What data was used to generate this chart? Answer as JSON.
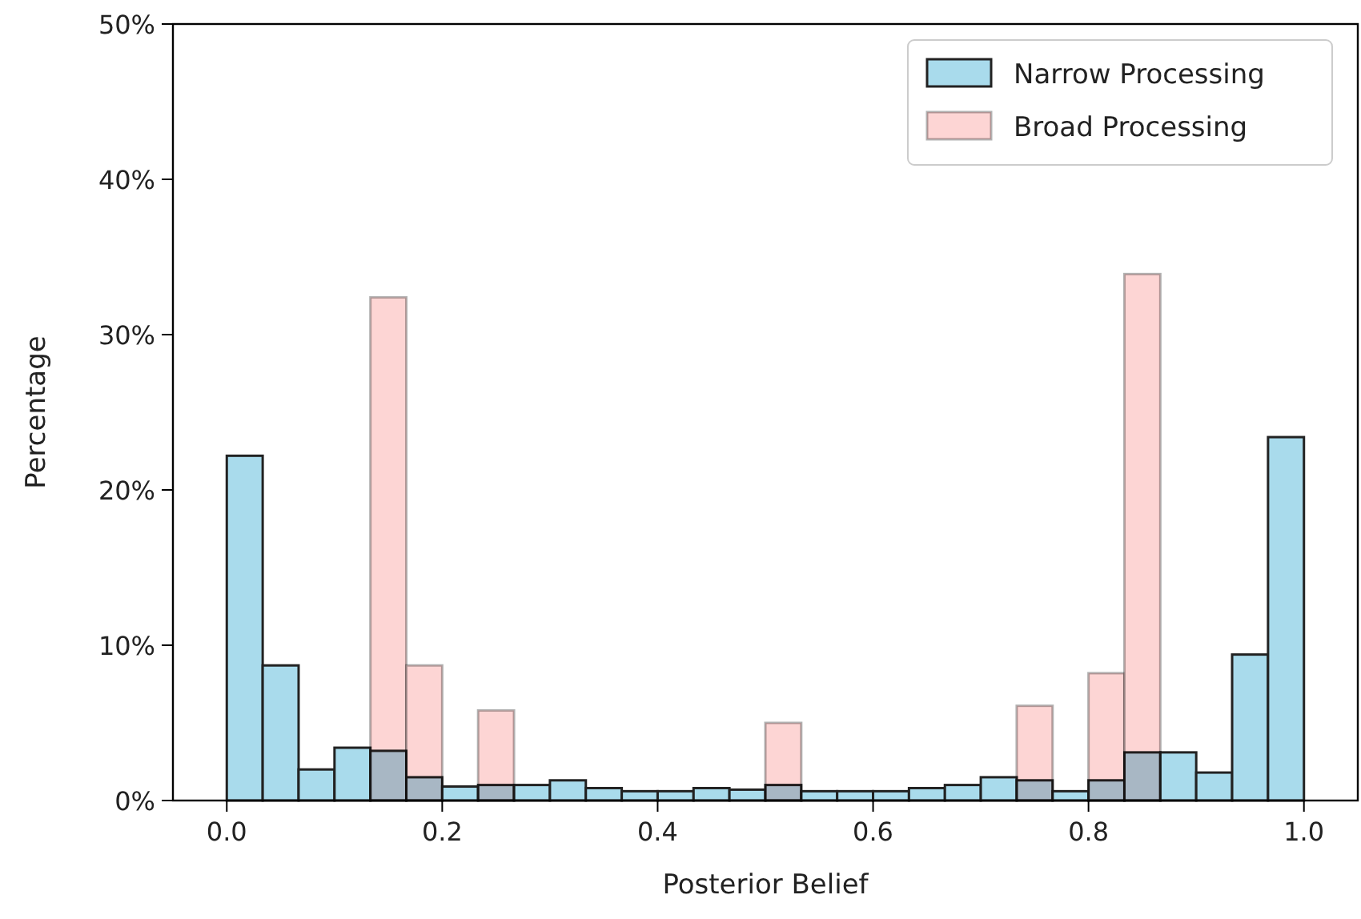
{
  "chart_data": {
    "type": "histogram",
    "xlabel": "Posterior Belief",
    "ylabel": "Percentage",
    "bins": [
      0,
      0.03333,
      0.06667,
      0.1,
      0.13333,
      0.16667,
      0.2,
      0.23333,
      0.26667,
      0.3,
      0.33333,
      0.36667,
      0.4,
      0.43333,
      0.46667,
      0.5,
      0.53333,
      0.56667,
      0.6,
      0.63333,
      0.66667,
      0.7,
      0.73333,
      0.76667,
      0.8,
      0.83333,
      0.86667,
      0.9,
      0.93333,
      0.96667,
      1
    ],
    "series": [
      {
        "name": "Narrow Processing",
        "color": "#a9dbec",
        "values": [
          22.2,
          8.7,
          2.0,
          3.4,
          3.2,
          1.5,
          0.9,
          1.0,
          1.0,
          1.3,
          0.8,
          0.6,
          0.6,
          0.8,
          0.7,
          1.0,
          0.6,
          0.6,
          0.6,
          0.8,
          1.0,
          1.5,
          1.3,
          0.6,
          1.3,
          3.1,
          3.1,
          1.8,
          9.4,
          23.4
        ]
      },
      {
        "name": "Broad Processing",
        "color": "#fdd5d4",
        "values": [
          0,
          0,
          0,
          0,
          32.4,
          8.7,
          0,
          5.8,
          0,
          0,
          0,
          0,
          0,
          0,
          0,
          5.0,
          0,
          0,
          0,
          0,
          0,
          0,
          6.1,
          0,
          8.2,
          33.9,
          0,
          0,
          0,
          0
        ]
      }
    ],
    "xlim": [
      -0.05,
      1.05
    ],
    "xticks": [
      {
        "value": 0,
        "label": "0.0"
      },
      0.2,
      0.4,
      0.6,
      0.8,
      {
        "value": 1,
        "label": "1.0"
      }
    ],
    "ylim": [
      0,
      50
    ],
    "yticks": [
      {
        "value": 0,
        "label": "0%"
      },
      {
        "value": 10,
        "label": "10%"
      },
      {
        "value": 20,
        "label": "20%"
      },
      {
        "value": 30,
        "label": "30%"
      },
      {
        "value": 40,
        "label": "40%"
      },
      {
        "value": 50,
        "label": "50%"
      }
    ],
    "legend": "top right",
    "grid": false
  }
}
